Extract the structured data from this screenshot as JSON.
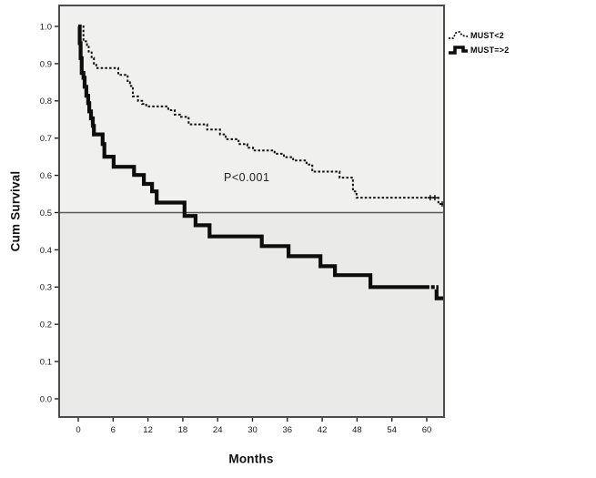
{
  "colors": {
    "curve": "#0d0d0d",
    "plot_bg_upper": "#f0f0ee",
    "plot_bg_lower": "#eaeae8",
    "border": "#4c4c4c",
    "reference_line": "#5a5a5a",
    "tick_text": "#1a1a1a"
  },
  "chart_data": {
    "type": "line",
    "subtype": "kaplan-meier-step",
    "title": "",
    "xlabel": "Months",
    "ylabel": "Cum Survival",
    "xlim": [
      -3.3,
      63
    ],
    "ylim": [
      -0.05,
      1.056
    ],
    "x_ticks": [
      0,
      6,
      12,
      18,
      24,
      30,
      36,
      42,
      48,
      54,
      60
    ],
    "y_ticks": [
      0.0,
      0.1,
      0.2,
      0.3,
      0.4,
      0.5,
      0.6,
      0.7,
      0.8,
      0.9,
      1.0
    ],
    "grid": false,
    "reference_line_y": 0.5,
    "legend_position": "outside-top-right",
    "annotation": {
      "text": "P<0.001",
      "x_month": 25,
      "y_value": 0.59
    },
    "series": [
      {
        "name": "MUST<2",
        "style": "dotted",
        "points": [
          [
            0,
            1.0
          ],
          [
            0.9,
            0.96
          ],
          [
            1.5,
            0.95
          ],
          [
            1.8,
            0.93
          ],
          [
            2.3,
            0.915
          ],
          [
            2.7,
            0.9
          ],
          [
            3.1,
            0.888
          ],
          [
            6.9,
            0.87
          ],
          [
            8.5,
            0.85
          ],
          [
            8.9,
            0.84
          ],
          [
            9.4,
            0.812
          ],
          [
            10.3,
            0.8
          ],
          [
            11.0,
            0.792
          ],
          [
            11.7,
            0.785
          ],
          [
            15.5,
            0.775
          ],
          [
            16.6,
            0.763
          ],
          [
            17.5,
            0.757
          ],
          [
            19.0,
            0.737
          ],
          [
            22.2,
            0.723
          ],
          [
            24.4,
            0.71
          ],
          [
            25.4,
            0.697
          ],
          [
            27.6,
            0.684
          ],
          [
            29.1,
            0.674
          ],
          [
            30.1,
            0.667
          ],
          [
            33.8,
            0.658
          ],
          [
            35.4,
            0.649
          ],
          [
            37.0,
            0.64
          ],
          [
            39.3,
            0.629
          ],
          [
            40.3,
            0.61
          ],
          [
            45.0,
            0.594
          ],
          [
            47.3,
            0.557
          ],
          [
            47.9,
            0.54
          ],
          [
            62.0,
            0.523
          ],
          [
            63.0,
            0.523
          ]
        ],
        "censor_marks": [
          [
            60.6,
            0.54
          ],
          [
            61.4,
            0.54
          ],
          [
            63.0,
            0.523
          ]
        ]
      },
      {
        "name": "MUST=>2",
        "style": "solid",
        "points": [
          [
            0,
            1.0
          ],
          [
            0.25,
            0.955
          ],
          [
            0.4,
            0.915
          ],
          [
            0.6,
            0.875
          ],
          [
            0.9,
            0.862
          ],
          [
            1.1,
            0.838
          ],
          [
            1.4,
            0.814
          ],
          [
            1.7,
            0.794
          ],
          [
            1.9,
            0.772
          ],
          [
            2.2,
            0.753
          ],
          [
            2.5,
            0.733
          ],
          [
            2.7,
            0.71
          ],
          [
            4.2,
            0.684
          ],
          [
            4.5,
            0.65
          ],
          [
            6.1,
            0.623
          ],
          [
            9.6,
            0.601
          ],
          [
            11.3,
            0.577
          ],
          [
            12.7,
            0.557
          ],
          [
            13.5,
            0.527
          ],
          [
            18.3,
            0.491
          ],
          [
            20.2,
            0.466
          ],
          [
            22.6,
            0.436
          ],
          [
            31.6,
            0.41
          ],
          [
            36.2,
            0.383
          ],
          [
            41.7,
            0.356
          ],
          [
            44.2,
            0.332
          ],
          [
            50.3,
            0.3
          ],
          [
            61.7,
            0.27
          ],
          [
            63.0,
            0.27
          ]
        ],
        "censor_marks": [
          [
            60.6,
            0.3
          ],
          [
            61.5,
            0.3
          ]
        ]
      }
    ]
  }
}
